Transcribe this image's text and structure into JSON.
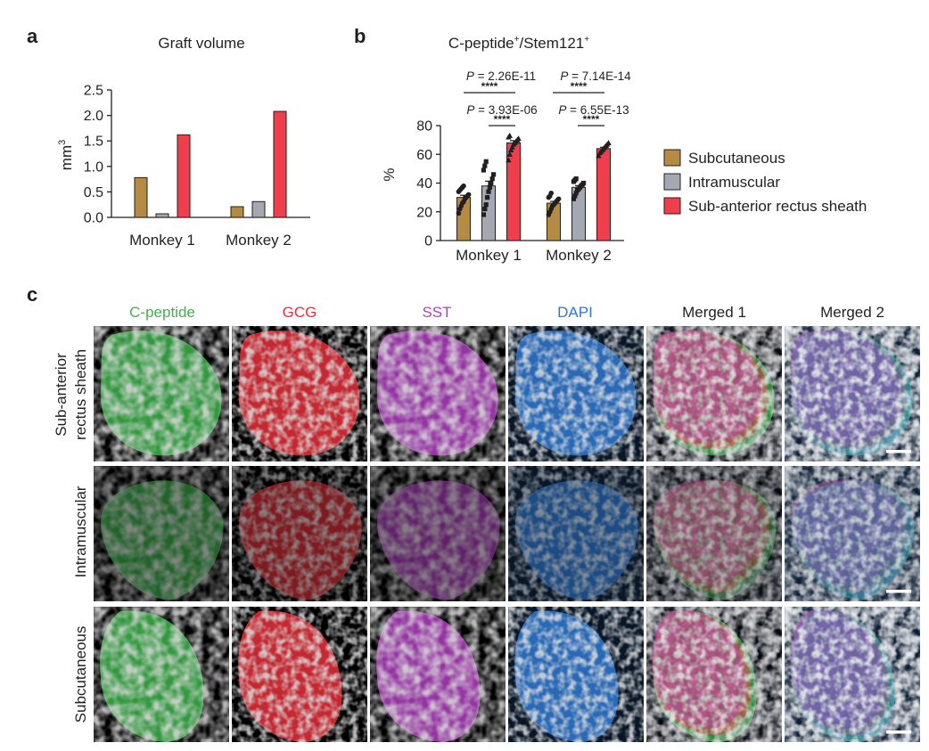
{
  "panels": {
    "a": "a",
    "b": "b",
    "c": "c"
  },
  "colors": {
    "subcutaneous": "#b58a42",
    "intramuscular": "#a4a8b0",
    "sub_anterior": "#ef3f4c",
    "stain_cpeptide": "#3cb44b",
    "stain_gcg": "#e8303a",
    "stain_sst": "#b03fc0",
    "stain_dapi": "#2f78d0",
    "stain_merged": "#231f20"
  },
  "chart_data": [
    {
      "type": "bar",
      "title": "Graft volume",
      "ylabel": "mm",
      "ylabel_sup": "3",
      "ylim": [
        0,
        2.5
      ],
      "yticks": [
        "0.0",
        "0.5",
        "1.0",
        "1.5",
        "2.0",
        "2.5"
      ],
      "categories": [
        "Monkey 1",
        "Monkey 2"
      ],
      "series": [
        {
          "name": "Subcutaneous",
          "values": [
            0.78,
            0.21
          ]
        },
        {
          "name": "Intramuscular",
          "values": [
            0.07,
            0.31
          ]
        },
        {
          "name": "Sub-anterior rectus sheath",
          "values": [
            1.62,
            2.08
          ]
        }
      ],
      "grid": false
    },
    {
      "type": "bar",
      "title_main": "C-peptide",
      "title_sup1": "+",
      "title_mid": "/Stem121",
      "title_sup2": "+",
      "ylabel": "%",
      "ylim": [
        0,
        80
      ],
      "yticks": [
        "0",
        "20",
        "40",
        "60",
        "80"
      ],
      "categories": [
        "Monkey 1",
        "Monkey 2"
      ],
      "series": [
        {
          "name": "Subcutaneous",
          "values": [
            30,
            26
          ],
          "points": [
            [
              19,
              22,
              24,
              26,
              27,
              29,
              30,
              31,
              32,
              34,
              35,
              36,
              37,
              38
            ],
            [
              18,
              20,
              22,
              24,
              25,
              26,
              27,
              28,
              29,
              30,
              31,
              33
            ]
          ]
        },
        {
          "name": "Intramuscular",
          "values": [
            38,
            37
          ],
          "points": [
            [
              18,
              22,
              25,
              30,
              34,
              37,
              40,
              43,
              46,
              49,
              52,
              55
            ],
            [
              29,
              31,
              33,
              35,
              36,
              37,
              38,
              39,
              40,
              41,
              42,
              43
            ]
          ]
        },
        {
          "name": "Sub-anterior rectus sheath",
          "values": [
            68,
            64
          ],
          "points": [
            [
              56,
              60,
              63,
              65,
              67,
              68,
              69,
              70,
              71,
              72,
              73
            ],
            [
              59,
              61,
              62,
              63,
              64,
              65,
              66,
              67,
              68
            ]
          ]
        }
      ],
      "legend_position": "right",
      "annotations": {
        "m1_outer": "P = 2.26E-11",
        "m1_inner": "P = 3.93E-06",
        "m2_outer": "P = 7.14E-14",
        "m2_inner": "P = 6.55E-13",
        "stars": "****"
      }
    }
  ],
  "legend": [
    "Subcutaneous",
    "Intramuscular",
    "Sub-anterior rectus sheath"
  ],
  "panel_c": {
    "columns": [
      "C-peptide",
      "GCG",
      "SST",
      "DAPI",
      "Merged 1",
      "Merged 2"
    ],
    "rows": [
      {
        "line1": "Sub-anterior",
        "line2": "rectus sheath"
      },
      {
        "line1": "Intramuscular",
        "line2": ""
      },
      {
        "line1": "Subcutaneous",
        "line2": ""
      }
    ]
  }
}
